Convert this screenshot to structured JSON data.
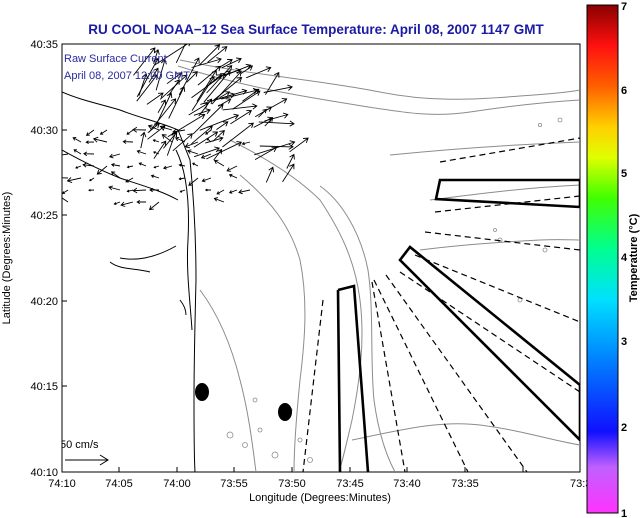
{
  "title": "RU COOL  NOAA−12  Sea Surface Temperature:  April 08, 2007 1147 GMT",
  "legend": {
    "line1": "Raw Surface Current",
    "line2": "April 08, 2007 12:00 GMT"
  },
  "scale_label": "50 cm/s",
  "axes": {
    "xlabel": "Longitude (Degrees:Minutes)",
    "ylabel": "Latitude (Degrees:Minutes)",
    "xticks": [
      "74:10",
      "74:05",
      "74:00",
      "73:55",
      "73:50",
      "73:45",
      "73:40",
      "73:35",
      "73:3"
    ],
    "yticks": [
      "40:35",
      "40:30",
      "40:25",
      "40:20",
      "40:15",
      "40:10"
    ]
  },
  "colorbar": {
    "label": "Temperature (°C)",
    "ticks": [
      "7",
      "6",
      "5",
      "4",
      "3",
      "2",
      "1"
    ],
    "min": 1,
    "max": 7
  },
  "colors": {
    "title": "#1a1aa6",
    "legend_text": "#2a2aa0",
    "coast": "#000000",
    "contour": "#8c8c8c",
    "vector": "#000000"
  }
}
